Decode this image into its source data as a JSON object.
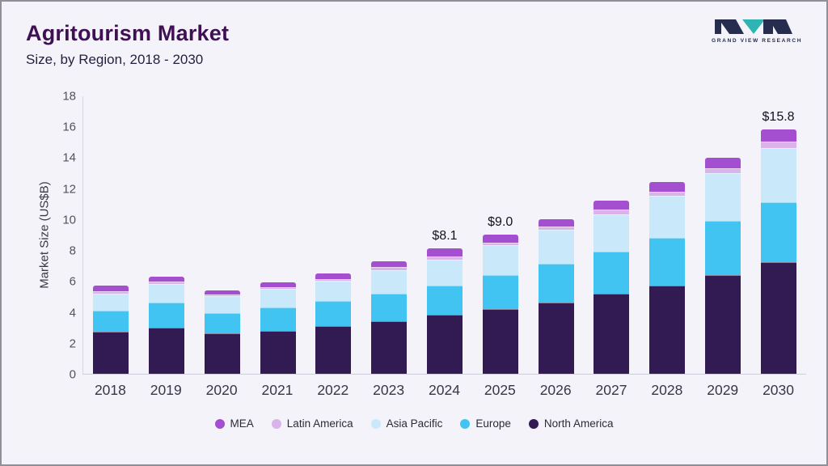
{
  "header": {
    "title": "Agritourism Market",
    "subtitle": "Size, by Region, 2018 - 2030",
    "logo_text": "GRAND VIEW RESEARCH"
  },
  "colors": {
    "background": "#f4f3f9",
    "title_text": "#3f1053",
    "logo_dark": "#272d4e",
    "logo_teal": "#2fb4b4",
    "axis_line": "#d5d3de",
    "tick_text": "#55505f"
  },
  "chart_data": {
    "type": "bar",
    "stacked": true,
    "title": "Agritourism Market Size, by Region, 2018 - 2030",
    "ylabel": "Market Size (US$B)",
    "xlabel": "",
    "ylim": [
      0,
      18
    ],
    "ytick_step": 2,
    "grid": false,
    "legend_position": "bottom",
    "categories": [
      "2018",
      "2019",
      "2020",
      "2021",
      "2022",
      "2023",
      "2024",
      "2025",
      "2026",
      "2027",
      "2028",
      "2029",
      "2030"
    ],
    "series": [
      {
        "name": "North America",
        "color": "#321b52",
        "values": [
          2.7,
          3.0,
          2.6,
          2.8,
          3.1,
          3.4,
          3.8,
          4.2,
          4.6,
          5.2,
          5.7,
          6.4,
          7.2
        ]
      },
      {
        "name": "Europe",
        "color": "#41c4f1",
        "values": [
          1.4,
          1.6,
          1.3,
          1.5,
          1.6,
          1.8,
          1.9,
          2.2,
          2.5,
          2.7,
          3.1,
          3.5,
          3.9
        ]
      },
      {
        "name": "Asia Pacific",
        "color": "#c9e9fa",
        "values": [
          1.1,
          1.2,
          1.1,
          1.2,
          1.3,
          1.5,
          1.7,
          1.9,
          2.2,
          2.4,
          2.7,
          3.1,
          3.5
        ]
      },
      {
        "name": "Latin America",
        "color": "#d9b3ea",
        "values": [
          0.15,
          0.15,
          0.12,
          0.12,
          0.15,
          0.2,
          0.2,
          0.2,
          0.2,
          0.3,
          0.3,
          0.3,
          0.4
        ]
      },
      {
        "name": "MEA",
        "color": "#a44fd0",
        "values": [
          0.35,
          0.35,
          0.28,
          0.28,
          0.35,
          0.4,
          0.5,
          0.5,
          0.5,
          0.6,
          0.6,
          0.7,
          0.8
        ]
      }
    ],
    "legend_order": [
      "MEA",
      "Latin America",
      "Asia Pacific",
      "Europe",
      "North America"
    ],
    "annotations": [
      {
        "category": "2024",
        "text": "$8.1"
      },
      {
        "category": "2025",
        "text": "$9.0"
      },
      {
        "category": "2030",
        "text": "$15.8"
      }
    ]
  }
}
